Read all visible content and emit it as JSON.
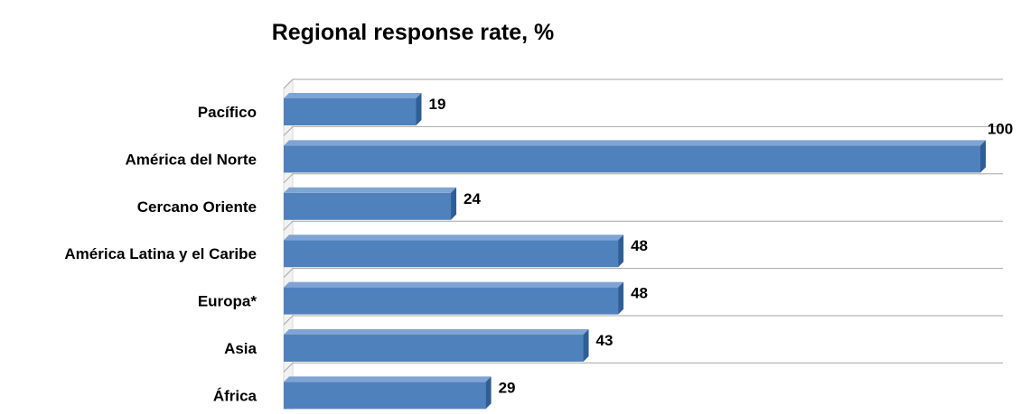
{
  "chart_data": {
    "type": "bar",
    "orientation": "horizontal",
    "title": "Regional response rate, %",
    "categories": [
      "Pacífico",
      "América del Norte",
      "Cercano Oriente",
      "América Latina y el Caribe",
      "Europa*",
      "Asia",
      "África"
    ],
    "values": [
      19,
      100,
      24,
      48,
      48,
      43,
      29
    ],
    "data_labels": [
      "19",
      "100",
      "24",
      "48",
      "48",
      "43",
      "29"
    ],
    "xlim": [
      0,
      100
    ],
    "grid": true,
    "legend": "none",
    "style": "3d",
    "colors": {
      "bar_front": "#4F81BD",
      "bar_top": "#7FA4D3",
      "bar_side": "#2F5E96",
      "grid": "#A6A6A6",
      "wall": "#D9D9D9",
      "text": "#000000"
    }
  }
}
